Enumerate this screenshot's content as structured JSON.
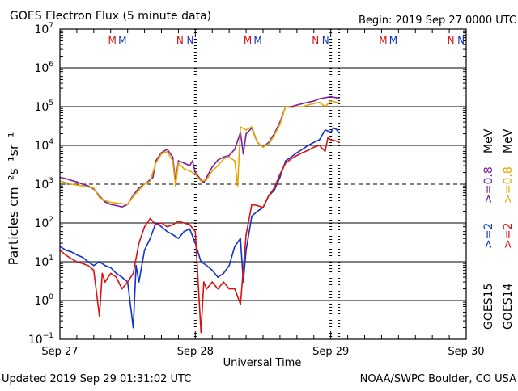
{
  "chart_data": {
    "type": "line",
    "title": "GOES Electron Flux (5 minute data)",
    "begin_label": "Begin: 2019 Sep 27 0000 UTC",
    "xlabel": "Universal Time",
    "ylabel": "Particles cm⁻²s⁻¹sr⁻¹",
    "y_scale": "log",
    "ylim": [
      0.1,
      10000000
    ],
    "y_ticks": [
      {
        "value": 10000000,
        "base": "10",
        "exp": "7"
      },
      {
        "value": 1000000,
        "base": "10",
        "exp": "6"
      },
      {
        "value": 100000,
        "base": "10",
        "exp": "5"
      },
      {
        "value": 10000,
        "base": "10",
        "exp": "4"
      },
      {
        "value": 1000,
        "base": "10",
        "exp": "3"
      },
      {
        "value": 100,
        "base": "10",
        "exp": "2"
      },
      {
        "value": 10,
        "base": "10",
        "exp": "1"
      },
      {
        "value": 1,
        "base": "10",
        "exp": "0"
      },
      {
        "value": 0.1,
        "base": "10",
        "exp": "−1"
      }
    ],
    "xlim": [
      0,
      72
    ],
    "x_unit": "hours since 2019 Sep 27 0000 UTC",
    "x_ticks": [
      {
        "value": 0,
        "label": "Sep 27"
      },
      {
        "value": 24,
        "label": "Sep 28"
      },
      {
        "value": 48,
        "label": "Sep 29"
      },
      {
        "value": 72,
        "label": "Sep 30"
      }
    ],
    "grid": "horizontal",
    "reference_line": {
      "value": 1000,
      "style": "dashed"
    },
    "now_line_hour": 49.5,
    "top_markers": [
      {
        "hour": 10.0,
        "text": "M",
        "color": "#dd1111"
      },
      {
        "hour": 11.8,
        "text": "M",
        "color": "#1133cc"
      },
      {
        "hour": 22.0,
        "text": "N",
        "color": "#dd1111"
      },
      {
        "hour": 23.8,
        "text": "N",
        "color": "#1133cc"
      },
      {
        "hour": 34.0,
        "text": "M",
        "color": "#dd1111"
      },
      {
        "hour": 35.8,
        "text": "M",
        "color": "#1133cc"
      },
      {
        "hour": 46.0,
        "text": "N",
        "color": "#dd1111"
      },
      {
        "hour": 47.8,
        "text": "N",
        "color": "#1133cc"
      },
      {
        "hour": 58.0,
        "text": "M",
        "color": "#dd1111"
      },
      {
        "hour": 59.8,
        "text": "M",
        "color": "#1133cc"
      },
      {
        "hour": 70.0,
        "text": "N",
        "color": "#dd1111"
      },
      {
        "hour": 71.8,
        "text": "N",
        "color": "#1133cc"
      }
    ],
    "legend": {
      "placement": "right",
      "columns": [
        {
          "satellite": "GOES15",
          "entries": [
            {
              "label": ">=2",
              "color": "#1133cc"
            },
            {
              "label": ">=0.8",
              "color": "#7a1fa2"
            },
            {
              "unit": "MeV"
            }
          ]
        },
        {
          "satellite": "GOES14",
          "entries": [
            {
              "label": ">=2",
              "color": "#dd1111"
            },
            {
              "label": ">=0.8",
              "color": "#e8a800"
            },
            {
              "unit": "MeV"
            }
          ]
        }
      ]
    },
    "series": [
      {
        "name": "GOES15 >=0.8 MeV",
        "color": "#7a1fa2",
        "points": [
          [
            0,
            1500
          ],
          [
            1,
            1400
          ],
          [
            2,
            1250
          ],
          [
            3,
            1150
          ],
          [
            4,
            1000
          ],
          [
            5,
            900
          ],
          [
            6,
            750
          ],
          [
            7,
            500
          ],
          [
            8,
            350
          ],
          [
            9,
            300
          ],
          [
            10,
            280
          ],
          [
            11,
            260
          ],
          [
            12,
            300
          ],
          [
            13,
            520
          ],
          [
            14,
            800
          ],
          [
            15,
            1000
          ],
          [
            16,
            1300
          ],
          [
            16.5,
            1500
          ],
          [
            17,
            4000
          ],
          [
            18,
            6500
          ],
          [
            19,
            8000
          ],
          [
            20,
            5000
          ],
          [
            20.5,
            1200
          ],
          [
            21,
            4000
          ],
          [
            22,
            3500
          ],
          [
            23,
            3000
          ],
          [
            23.5,
            4000
          ],
          [
            24,
            2000
          ],
          [
            25,
            1300
          ],
          [
            25.5,
            1100
          ],
          [
            26,
            1500
          ],
          [
            27,
            2800
          ],
          [
            28,
            4200
          ],
          [
            29,
            5000
          ],
          [
            30,
            5500
          ],
          [
            31,
            8000
          ],
          [
            32,
            22000
          ],
          [
            32.5,
            6000
          ],
          [
            33,
            20000
          ],
          [
            34,
            28000
          ],
          [
            35,
            12000
          ],
          [
            36,
            9000
          ],
          [
            37,
            12000
          ],
          [
            38,
            20000
          ],
          [
            39,
            40000
          ],
          [
            40,
            100000
          ],
          [
            41,
            100000
          ],
          [
            42,
            110000
          ],
          [
            43,
            120000
          ],
          [
            44,
            130000
          ],
          [
            45,
            140000
          ],
          [
            46,
            160000
          ],
          [
            47,
            170000
          ],
          [
            48,
            180000
          ],
          [
            49,
            170000
          ],
          [
            49.5,
            160000
          ]
        ]
      },
      {
        "name": "GOES14 >=0.8 MeV",
        "color": "#e8a800",
        "points": [
          [
            0,
            1200
          ],
          [
            1,
            1100
          ],
          [
            2,
            1000
          ],
          [
            3,
            950
          ],
          [
            4,
            900
          ],
          [
            5,
            850
          ],
          [
            6,
            800
          ],
          [
            7,
            450
          ],
          [
            8,
            380
          ],
          [
            9,
            340
          ],
          [
            12,
            300
          ],
          [
            13,
            480
          ],
          [
            14,
            700
          ],
          [
            15,
            1000
          ],
          [
            16,
            1200
          ],
          [
            17,
            3500
          ],
          [
            18,
            6000
          ],
          [
            19,
            7000
          ],
          [
            20,
            4000
          ],
          [
            20.5,
            900
          ],
          [
            21,
            3500
          ],
          [
            22,
            2500
          ],
          [
            23,
            2200
          ],
          [
            24,
            1800
          ],
          [
            25,
            1200
          ],
          [
            26,
            1300
          ],
          [
            27,
            2200
          ],
          [
            28,
            3000
          ],
          [
            29,
            4500
          ],
          [
            30,
            5000
          ],
          [
            31,
            4000
          ],
          [
            31.5,
            900
          ],
          [
            32,
            30000
          ],
          [
            33,
            25000
          ],
          [
            34,
            30000
          ],
          [
            35,
            12000
          ],
          [
            36,
            9000
          ],
          [
            37,
            11000
          ],
          [
            38,
            18000
          ],
          [
            39,
            35000
          ],
          [
            40,
            100000
          ],
          [
            41,
            95000
          ],
          [
            42,
            100000
          ],
          [
            43,
            100000
          ],
          [
            44,
            110000
          ],
          [
            45,
            120000
          ],
          [
            46,
            130000
          ],
          [
            47,
            100000
          ],
          [
            48,
            140000
          ],
          [
            49,
            130000
          ],
          [
            49.5,
            125000
          ]
        ]
      },
      {
        "name": "GOES15 >=2 MeV",
        "color": "#1133cc",
        "points": [
          [
            0,
            25
          ],
          [
            1,
            20
          ],
          [
            2,
            18
          ],
          [
            3,
            15
          ],
          [
            4,
            13
          ],
          [
            5,
            10
          ],
          [
            6,
            8
          ],
          [
            7,
            10
          ],
          [
            8,
            8
          ],
          [
            9,
            7
          ],
          [
            10,
            5
          ],
          [
            11,
            4
          ],
          [
            12,
            3
          ],
          [
            13,
            0.2
          ],
          [
            13.5,
            8
          ],
          [
            14,
            3
          ],
          [
            15,
            20
          ],
          [
            16,
            40
          ],
          [
            17,
            100
          ],
          [
            18,
            80
          ],
          [
            19,
            60
          ],
          [
            20,
            50
          ],
          [
            21,
            40
          ],
          [
            22,
            60
          ],
          [
            23,
            70
          ],
          [
            24,
            30
          ],
          [
            25,
            10
          ],
          [
            26,
            8
          ],
          [
            27,
            6
          ],
          [
            28,
            4
          ],
          [
            29,
            5
          ],
          [
            30,
            8
          ],
          [
            31,
            25
          ],
          [
            32,
            40
          ],
          [
            32.5,
            3
          ],
          [
            33,
            20
          ],
          [
            34,
            150
          ],
          [
            35,
            200
          ],
          [
            36,
            250
          ],
          [
            37,
            500
          ],
          [
            38,
            700
          ],
          [
            39,
            1500
          ],
          [
            40,
            4000
          ],
          [
            41,
            5000
          ],
          [
            42,
            6500
          ],
          [
            43,
            8000
          ],
          [
            44,
            10000
          ],
          [
            45,
            12000
          ],
          [
            46,
            14000
          ],
          [
            47,
            25000
          ],
          [
            48,
            22000
          ],
          [
            48.5,
            28000
          ],
          [
            49,
            26000
          ],
          [
            49.5,
            21000
          ]
        ]
      },
      {
        "name": "GOES14 >=2 MeV",
        "color": "#dd1111",
        "points": [
          [
            0,
            20
          ],
          [
            1,
            15
          ],
          [
            2,
            12
          ],
          [
            3,
            10
          ],
          [
            4,
            9
          ],
          [
            5,
            8
          ],
          [
            6,
            6
          ],
          [
            7,
            0.4
          ],
          [
            7.5,
            5
          ],
          [
            8,
            3
          ],
          [
            9,
            5
          ],
          [
            10,
            4
          ],
          [
            11,
            2
          ],
          [
            12,
            3
          ],
          [
            13,
            5
          ],
          [
            14,
            30
          ],
          [
            15,
            80
          ],
          [
            16,
            130
          ],
          [
            17,
            90
          ],
          [
            18,
            100
          ],
          [
            19,
            80
          ],
          [
            20,
            90
          ],
          [
            21,
            110
          ],
          [
            22,
            100
          ],
          [
            23,
            90
          ],
          [
            24,
            60
          ],
          [
            25,
            0.15
          ],
          [
            25.5,
            3
          ],
          [
            26,
            2
          ],
          [
            27,
            3
          ],
          [
            28,
            2
          ],
          [
            29,
            3
          ],
          [
            30,
            2
          ],
          [
            31,
            2
          ],
          [
            32,
            0.8
          ],
          [
            33,
            50
          ],
          [
            34,
            300
          ],
          [
            35,
            280
          ],
          [
            36,
            250
          ],
          [
            37,
            500
          ],
          [
            38,
            800
          ],
          [
            39,
            1800
          ],
          [
            40,
            3500
          ],
          [
            41,
            4500
          ],
          [
            42,
            5500
          ],
          [
            43,
            6500
          ],
          [
            44,
            7500
          ],
          [
            45,
            9000
          ],
          [
            46,
            10000
          ],
          [
            47,
            7000
          ],
          [
            47.5,
            16000
          ],
          [
            48,
            14000
          ],
          [
            49,
            13000
          ],
          [
            49.5,
            12000
          ]
        ]
      }
    ]
  },
  "footer": {
    "updated": "Updated 2019 Sep 29 01:31:02 UTC",
    "credit": "NOAA/SWPC Boulder, CO USA"
  }
}
